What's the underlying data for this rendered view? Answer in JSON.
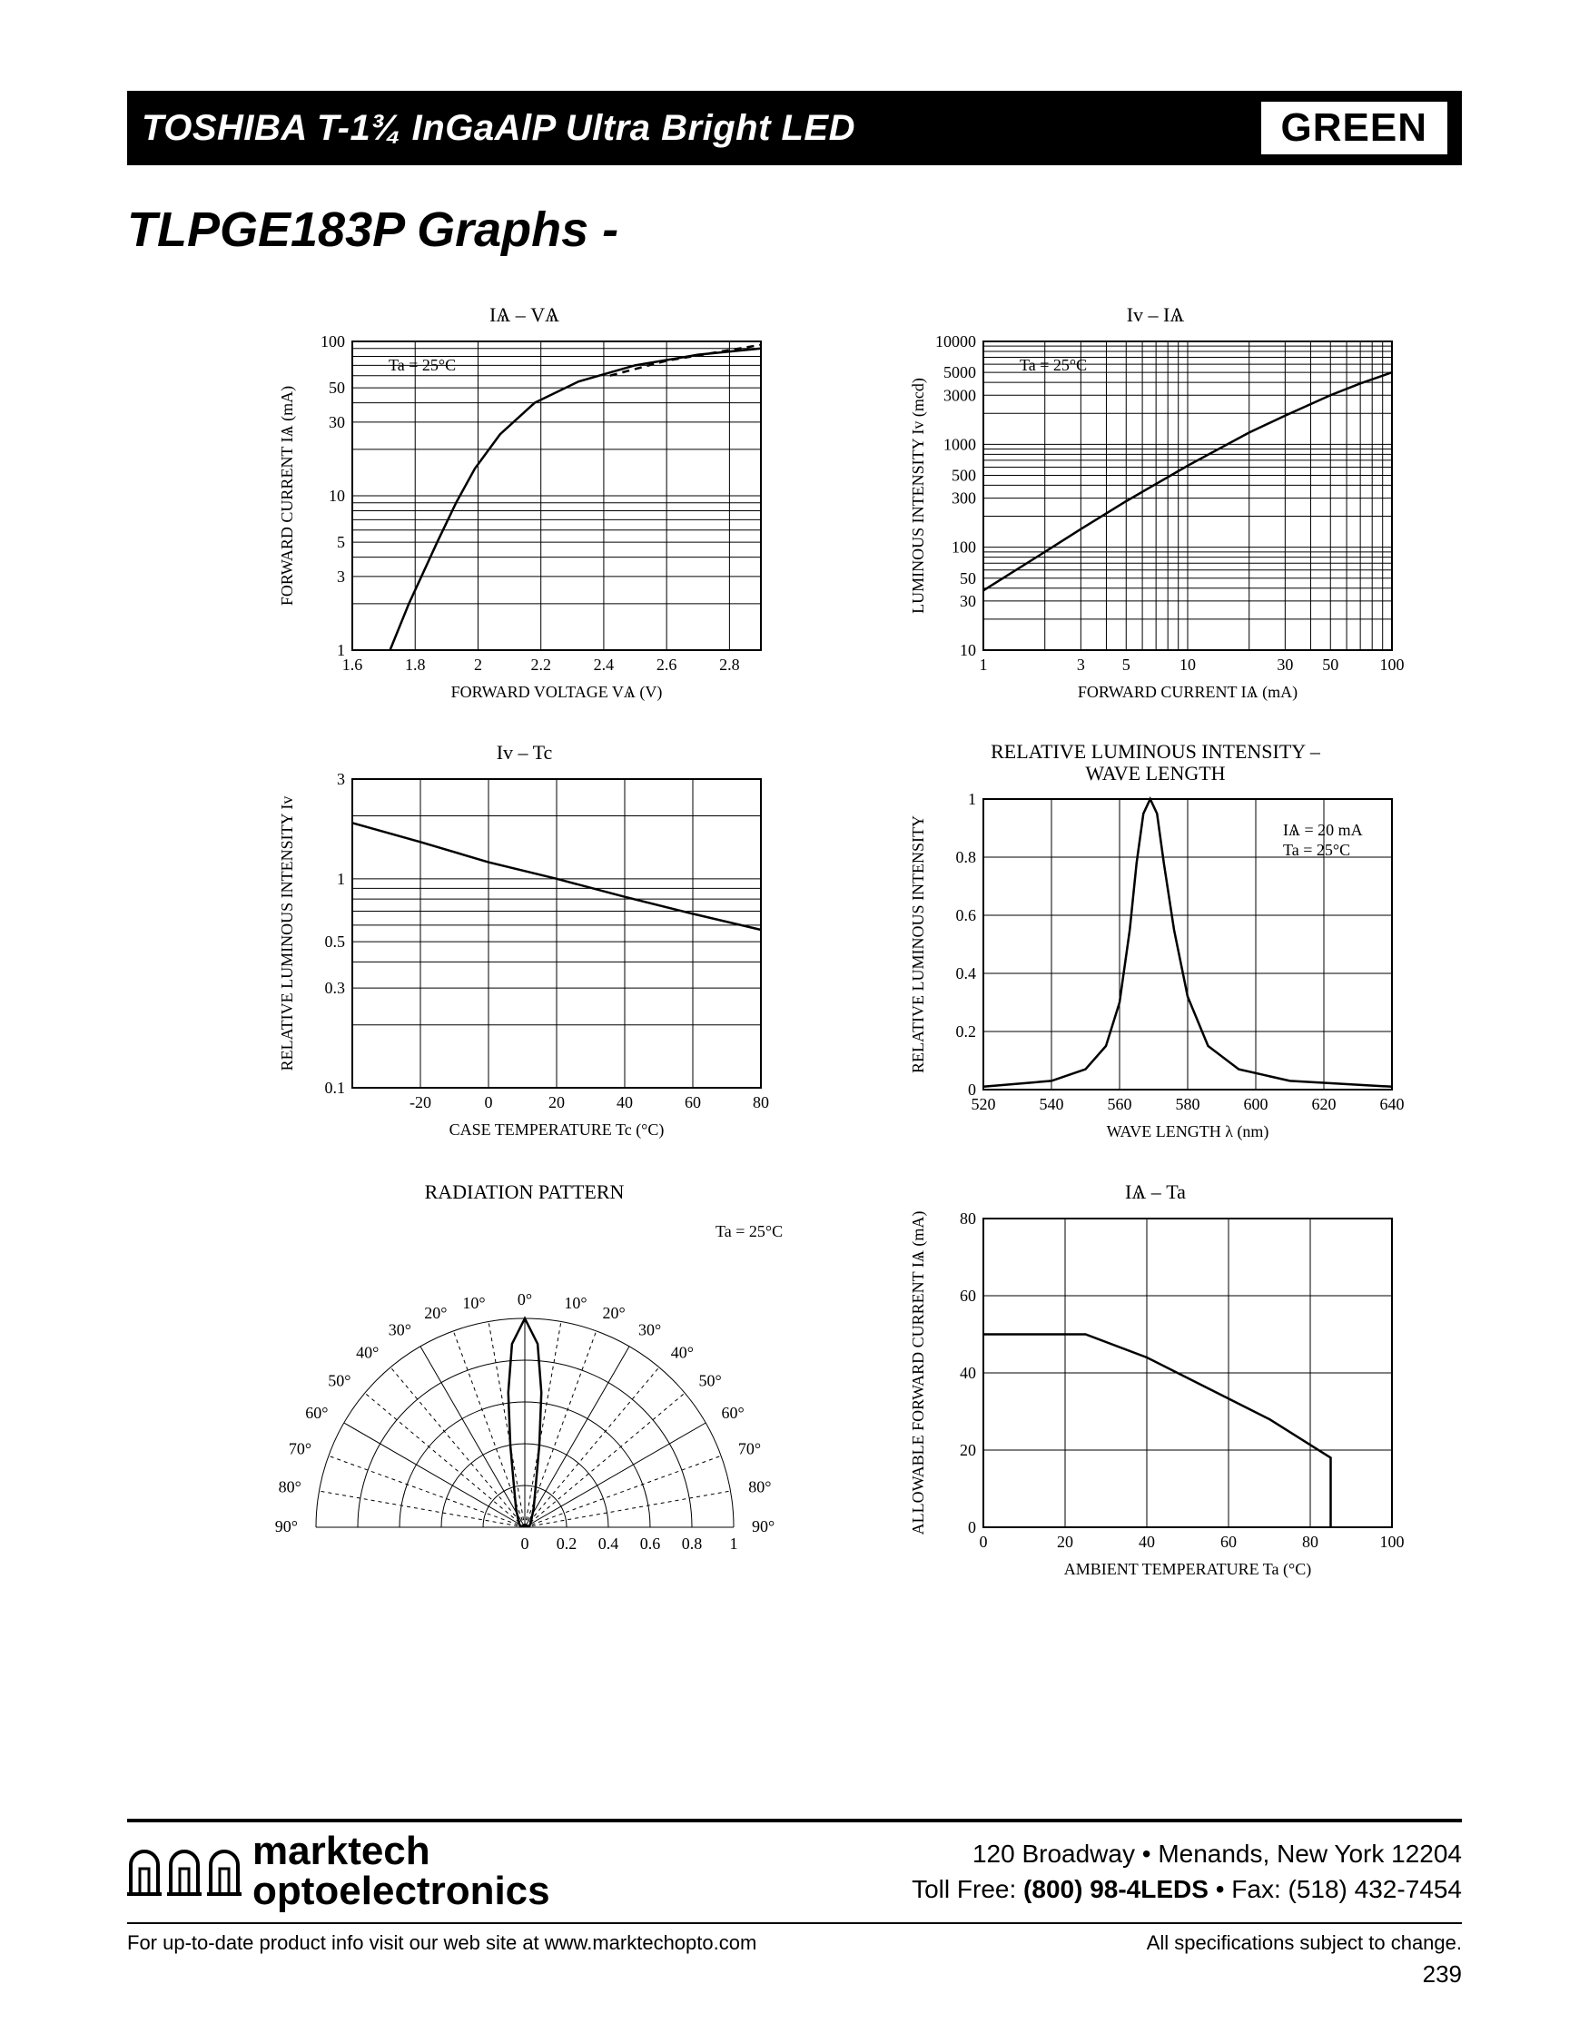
{
  "header": {
    "title": "TOSHIBA T-1¾ InGaAlP Ultra Bright LED",
    "badge": "GREEN"
  },
  "section_title": "TLPGE183P Graphs -",
  "line_color": "#000000",
  "grid_color": "#000000",
  "background_color": "#ffffff",
  "charts": {
    "if_vf": {
      "title": "IѦ  –  VѦ",
      "note": "Ta = 25°C",
      "xlabel": "FORWARD VOLTAGE   VѦ   (V)",
      "ylabel": "FORWARD CURRENT   IѦ   (mA)",
      "xlim": [
        1.6,
        2.9
      ],
      "xticks": [
        1.6,
        1.8,
        2.0,
        2.2,
        2.4,
        2.6,
        2.8
      ],
      "ylim_log": [
        1,
        100
      ],
      "yticks": [
        1,
        3,
        5,
        10,
        30,
        50,
        100
      ],
      "curve_points": [
        [
          1.72,
          1
        ],
        [
          1.78,
          2
        ],
        [
          1.82,
          3
        ],
        [
          1.87,
          5
        ],
        [
          1.93,
          9
        ],
        [
          1.99,
          15
        ],
        [
          2.07,
          25
        ],
        [
          2.18,
          40
        ],
        [
          2.32,
          55
        ],
        [
          2.5,
          70
        ],
        [
          2.7,
          82
        ],
        [
          2.9,
          90
        ]
      ],
      "dashed_points": [
        [
          2.42,
          60
        ],
        [
          2.6,
          75
        ],
        [
          2.9,
          95
        ]
      ]
    },
    "iv_if": {
      "title": "Iᴠ  –  IѦ",
      "note": "Ta = 25°C",
      "xlabel": "FORWARD CURRENT   IѦ   (mA)",
      "ylabel": "LUMINOUS INTENSITY   Iᴠ   (mcd)",
      "xlim_log": [
        1,
        100
      ],
      "xticks": [
        1,
        3,
        5,
        10,
        30,
        50,
        100
      ],
      "ylim_log": [
        10,
        10000
      ],
      "yticks": [
        10,
        30,
        50,
        100,
        300,
        500,
        1000,
        3000,
        5000,
        10000
      ],
      "curve_points": [
        [
          1,
          38
        ],
        [
          2,
          90
        ],
        [
          3,
          150
        ],
        [
          5,
          280
        ],
        [
          10,
          620
        ],
        [
          20,
          1300
        ],
        [
          30,
          1900
        ],
        [
          50,
          3000
        ],
        [
          70,
          3900
        ],
        [
          100,
          5000
        ]
      ]
    },
    "iv_tc": {
      "title": "Iᴠ  –  Tc",
      "xlabel": "CASE TEMPERATURE   Tc   (°C)",
      "ylabel": "RELATIVE LUMINOUS INTENSITY   Iᴠ",
      "xlim": [
        -40,
        80
      ],
      "xticks": [
        -20,
        0,
        20,
        40,
        60,
        80
      ],
      "ylim_log": [
        0.1,
        3
      ],
      "yticks": [
        0.1,
        0.3,
        0.5,
        1,
        3
      ],
      "curve_points": [
        [
          -40,
          1.85
        ],
        [
          -20,
          1.5
        ],
        [
          0,
          1.2
        ],
        [
          20,
          1.0
        ],
        [
          40,
          0.82
        ],
        [
          60,
          0.68
        ],
        [
          80,
          0.57
        ]
      ]
    },
    "spectrum": {
      "title_line1": "RELATIVE LUMINOUS INTENSITY  –",
      "title_line2": "WAVE LENGTH",
      "note1": "IѦ = 20 mA",
      "note2": "Ta = 25°C",
      "xlabel": "WAVE LENGTH   λ   (nm)",
      "ylabel": "RELATIVE LUMINOUS INTENSITY",
      "xlim": [
        520,
        640
      ],
      "xticks": [
        520,
        540,
        560,
        580,
        600,
        620,
        640
      ],
      "ylim": [
        0,
        1.0
      ],
      "yticks": [
        0,
        0.2,
        0.4,
        0.6,
        0.8,
        1.0
      ],
      "curve_points": [
        [
          520,
          0.01
        ],
        [
          540,
          0.03
        ],
        [
          550,
          0.07
        ],
        [
          556,
          0.15
        ],
        [
          560,
          0.3
        ],
        [
          563,
          0.55
        ],
        [
          565,
          0.78
        ],
        [
          567,
          0.95
        ],
        [
          569,
          1.0
        ],
        [
          571,
          0.95
        ],
        [
          573,
          0.78
        ],
        [
          576,
          0.55
        ],
        [
          580,
          0.32
        ],
        [
          586,
          0.15
        ],
        [
          595,
          0.07
        ],
        [
          610,
          0.03
        ],
        [
          640,
          0.01
        ]
      ]
    },
    "radiation": {
      "title": "RADIATION PATTERN",
      "note": "Ta = 25°C",
      "angle_labels": [
        "0°",
        "10°",
        "20°",
        "30°",
        "40°",
        "50°",
        "60°",
        "70°",
        "80°",
        "90°"
      ],
      "radial_ticks": [
        0,
        0.2,
        0.4,
        0.6,
        0.8,
        1.0
      ],
      "pattern_points": [
        [
          -90,
          0.02
        ],
        [
          -60,
          0.03
        ],
        [
          -40,
          0.05
        ],
        [
          -25,
          0.1
        ],
        [
          -15,
          0.2
        ],
        [
          -10,
          0.4
        ],
        [
          -7,
          0.65
        ],
        [
          -4,
          0.88
        ],
        [
          0,
          1.0
        ],
        [
          4,
          0.88
        ],
        [
          7,
          0.65
        ],
        [
          10,
          0.4
        ],
        [
          15,
          0.2
        ],
        [
          25,
          0.1
        ],
        [
          40,
          0.05
        ],
        [
          60,
          0.03
        ],
        [
          90,
          0.02
        ]
      ]
    },
    "if_ta": {
      "title": "IѦ  –  Ta",
      "xlabel": "AMBIENT TEMPERATURE   Ta   (°C)",
      "ylabel": "ALLOWABLE FORWARD CURRENT\nIѦ   (mA)",
      "xlim": [
        0,
        100
      ],
      "xticks": [
        0,
        20,
        40,
        60,
        80,
        100
      ],
      "ylim": [
        0,
        80
      ],
      "yticks": [
        0,
        20,
        40,
        60,
        80
      ],
      "curve_points": [
        [
          0,
          50
        ],
        [
          25,
          50
        ],
        [
          40,
          44
        ],
        [
          55,
          36
        ],
        [
          70,
          28
        ],
        [
          85,
          18
        ],
        [
          85,
          0
        ]
      ]
    }
  },
  "footer": {
    "company_line1": "marktech",
    "company_line2": "optoelectronics",
    "address_line1": "120 Broadway • Menands, New York 12204",
    "address_line2_pre": "Toll Free: ",
    "address_line2_bold": "(800) 98-4LEDS",
    "address_line2_post": " • Fax: (518) 432-7454",
    "bottom_left": "For up-to-date product info visit our web site at www.marktechopto.com",
    "bottom_right": "All specifications subject to change.",
    "page_number": "239"
  }
}
